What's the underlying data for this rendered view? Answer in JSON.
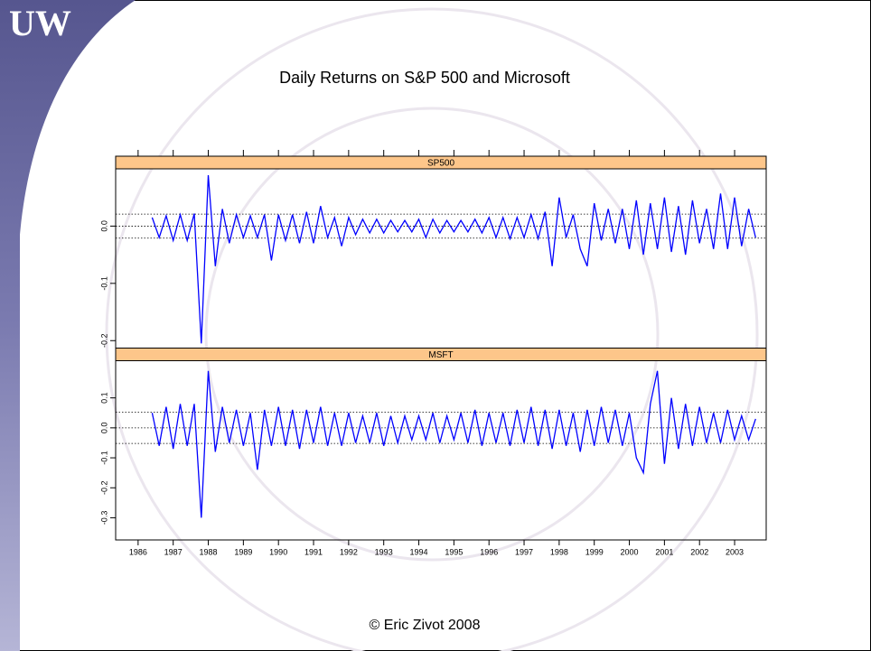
{
  "logo": "UW",
  "title": "Daily Returns on S&P 500 and Microsoft",
  "footer": "© Eric Zivot 2008",
  "chart_data": {
    "type": "line",
    "layout": "stacked-panels",
    "x": [
      1986.4,
      1986.6,
      1986.8,
      1987.0,
      1987.2,
      1987.4,
      1987.6,
      1987.8,
      1988.0,
      1988.2,
      1988.4,
      1988.6,
      1988.8,
      1989.0,
      1989.2,
      1989.4,
      1989.6,
      1989.8,
      1990.0,
      1990.2,
      1990.4,
      1990.6,
      1990.8,
      1991.0,
      1991.2,
      1991.4,
      1991.6,
      1991.8,
      1992.0,
      1992.2,
      1992.4,
      1992.6,
      1992.8,
      1993.0,
      1993.2,
      1993.4,
      1993.6,
      1993.8,
      1994.0,
      1994.2,
      1994.4,
      1994.6,
      1994.8,
      1995.0,
      1995.2,
      1995.4,
      1995.6,
      1995.8,
      1996.0,
      1996.2,
      1996.4,
      1996.6,
      1996.8,
      1997.0,
      1997.2,
      1997.4,
      1997.6,
      1997.8,
      1998.0,
      1998.2,
      1998.4,
      1998.6,
      1998.8,
      1999.0,
      1999.2,
      1999.4,
      1999.6,
      1999.8,
      2000.0,
      2000.2,
      2000.4,
      2000.6,
      2000.8,
      2001.0,
      2001.2,
      2001.4,
      2001.6,
      2001.8,
      2002.0,
      2002.2,
      2002.4,
      2002.6,
      2002.8,
      2003.0,
      2003.2,
      2003.4,
      2003.6
    ],
    "xlim": [
      1985.36,
      2003.9
    ],
    "xticks": [
      1986,
      1987,
      1988,
      1989,
      1990,
      1991,
      1992,
      1993,
      1994,
      1995,
      1996,
      1997,
      1998,
      1999,
      2000,
      2001,
      2002,
      2003
    ],
    "series": [
      {
        "name": "SP500",
        "color": "#0000ff",
        "ylim": [
          -0.213,
          0.1
        ],
        "yticks": [
          -0.2,
          -0.1,
          {
            "value": 0,
            "label": "0.0"
          }
        ],
        "reference_lines": [
          -0.021,
          0,
          0.021
        ],
        "values": [
          0.015,
          -0.02,
          0.018,
          -0.025,
          0.02,
          -0.025,
          0.022,
          -0.205,
          0.089,
          -0.07,
          0.03,
          -0.03,
          0.02,
          -0.02,
          0.018,
          -0.02,
          0.02,
          -0.06,
          0.02,
          -0.025,
          0.02,
          -0.03,
          0.025,
          -0.03,
          0.035,
          -0.02,
          0.015,
          -0.035,
          0.015,
          -0.015,
          0.012,
          -0.012,
          0.012,
          -0.012,
          0.01,
          -0.01,
          0.01,
          -0.01,
          0.012,
          -0.02,
          0.012,
          -0.012,
          0.01,
          -0.01,
          0.01,
          -0.01,
          0.012,
          -0.012,
          0.015,
          -0.02,
          0.015,
          -0.022,
          0.015,
          -0.02,
          0.02,
          -0.022,
          0.025,
          -0.07,
          0.05,
          -0.02,
          0.02,
          -0.04,
          -0.07,
          0.04,
          -0.025,
          0.03,
          -0.03,
          0.03,
          -0.04,
          0.045,
          -0.05,
          0.04,
          -0.04,
          0.05,
          -0.045,
          0.035,
          -0.05,
          0.045,
          -0.03,
          0.03,
          -0.04,
          0.057,
          -0.04,
          0.05,
          -0.035,
          0.03,
          -0.02
        ]
      },
      {
        "name": "MSFT",
        "color": "#0000ff",
        "ylim": [
          -0.374,
          0.224
        ],
        "yticks": [
          -0.3,
          -0.2,
          -0.1,
          {
            "value": 0,
            "label": "0.0"
          },
          0.1
        ],
        "reference_lines": [
          -0.052,
          0,
          0.052
        ],
        "values": [
          0.05,
          -0.06,
          0.07,
          -0.07,
          0.08,
          -0.06,
          0.08,
          -0.3,
          0.19,
          -0.08,
          0.07,
          -0.05,
          0.06,
          -0.06,
          0.05,
          -0.14,
          0.06,
          -0.06,
          0.07,
          -0.06,
          0.06,
          -0.07,
          0.06,
          -0.05,
          0.07,
          -0.06,
          0.05,
          -0.06,
          0.05,
          -0.05,
          0.04,
          -0.05,
          0.05,
          -0.06,
          0.04,
          -0.05,
          0.04,
          -0.04,
          0.04,
          -0.04,
          0.05,
          -0.05,
          0.04,
          -0.04,
          0.05,
          -0.05,
          0.06,
          -0.06,
          0.05,
          -0.05,
          0.05,
          -0.06,
          0.06,
          -0.05,
          0.07,
          -0.06,
          0.06,
          -0.07,
          0.06,
          -0.06,
          0.05,
          -0.08,
          0.06,
          -0.06,
          0.07,
          -0.05,
          0.06,
          -0.06,
          0.05,
          -0.1,
          -0.15,
          0.08,
          0.19,
          -0.12,
          0.1,
          -0.07,
          0.08,
          -0.06,
          0.07,
          -0.05,
          0.05,
          -0.05,
          0.06,
          -0.04,
          0.04,
          -0.04,
          0.03
        ]
      }
    ]
  }
}
